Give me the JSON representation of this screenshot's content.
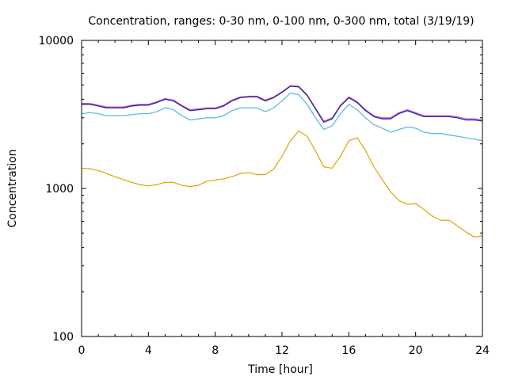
{
  "chart_data": {
    "type": "line",
    "title": "Concentration, ranges: 0-30 nm, 0-100 nm, 0-300 nm, total (3/19/19)",
    "xlabel": "Time [hour]",
    "ylabel": "Concentration",
    "xlim": [
      0,
      24
    ],
    "ylim": [
      100,
      10000
    ],
    "yscale": "log",
    "x_ticks": [
      0,
      4,
      8,
      12,
      16,
      20,
      24
    ],
    "x_tick_labels": [
      "0",
      "4",
      "8",
      "12",
      "16",
      "20",
      "24"
    ],
    "y_ticks": [
      100,
      1000,
      10000
    ],
    "y_tick_labels": [
      "100",
      "1000",
      "10000"
    ],
    "grid": false,
    "legend": "none",
    "x": [
      0,
      0.5,
      1,
      1.5,
      2,
      2.5,
      3,
      3.5,
      4,
      4.5,
      5,
      5.5,
      6,
      6.5,
      7,
      7.5,
      8,
      8.5,
      9,
      9.5,
      10,
      10.5,
      11,
      11.5,
      12,
      12.5,
      13,
      13.5,
      14,
      14.5,
      15,
      15.5,
      16,
      16.5,
      17,
      17.5,
      18,
      18.5,
      19,
      19.5,
      20,
      20.5,
      21,
      21.5,
      22,
      22.5,
      23,
      23.5,
      24
    ],
    "series": [
      {
        "color": "#e6a000",
        "values": [
          1370,
          1360,
          1320,
          1260,
          1200,
          1150,
          1100,
          1060,
          1040,
          1060,
          1100,
          1100,
          1050,
          1030,
          1050,
          1120,
          1140,
          1160,
          1200,
          1260,
          1280,
          1240,
          1240,
          1350,
          1650,
          2100,
          2450,
          2250,
          1800,
          1400,
          1370,
          1650,
          2100,
          2200,
          1800,
          1400,
          1150,
          950,
          830,
          780,
          790,
          720,
          650,
          610,
          610,
          560,
          510,
          470,
          480
        ]
      },
      {
        "color": "#56b4e9",
        "values": [
          3200,
          3250,
          3200,
          3100,
          3100,
          3100,
          3150,
          3200,
          3200,
          3300,
          3500,
          3400,
          3100,
          2900,
          2950,
          3000,
          3000,
          3100,
          3350,
          3500,
          3500,
          3500,
          3300,
          3500,
          3900,
          4400,
          4300,
          3700,
          3000,
          2500,
          2650,
          3200,
          3700,
          3400,
          3000,
          2700,
          2550,
          2400,
          2500,
          2600,
          2550,
          2400,
          2350,
          2350,
          2300,
          2250,
          2200,
          2150,
          2100
        ]
      },
      {
        "color": "#cc44ff",
        "values": [
          3750,
          3750,
          3650,
          3550,
          3550,
          3550,
          3650,
          3700,
          3700,
          3850,
          4050,
          3950,
          3650,
          3400,
          3450,
          3500,
          3500,
          3650,
          3950,
          4150,
          4200,
          4200,
          3950,
          4150,
          4500,
          4950,
          4900,
          4300,
          3500,
          2850,
          3000,
          3650,
          4150,
          3850,
          3400,
          3100,
          3000,
          3000,
          3250,
          3400,
          3250,
          3100,
          3100,
          3100,
          3100,
          3050,
          2950,
          2950,
          2900
        ]
      },
      {
        "color": "#1c2a6e",
        "values": [
          3700,
          3700,
          3600,
          3500,
          3500,
          3500,
          3600,
          3650,
          3650,
          3800,
          4000,
          3900,
          3600,
          3350,
          3400,
          3450,
          3450,
          3600,
          3900,
          4100,
          4150,
          4150,
          3900,
          4100,
          4450,
          4900,
          4850,
          4250,
          3450,
          2800,
          2950,
          3600,
          4100,
          3800,
          3350,
          3050,
          2950,
          2950,
          3200,
          3350,
          3200,
          3050,
          3050,
          3050,
          3050,
          3000,
          2900,
          2900,
          2850
        ]
      }
    ]
  }
}
